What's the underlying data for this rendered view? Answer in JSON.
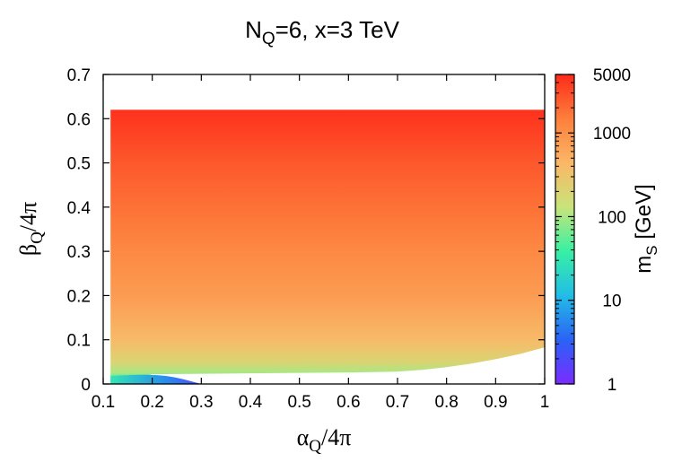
{
  "chart_data": {
    "type": "heatmap",
    "title": {
      "main": "N",
      "sub": "Q",
      "rest": "=6, x=3 TeV"
    },
    "xlabel": {
      "symbol": "α",
      "sub": "Q",
      "rest": "/4π"
    },
    "ylabel": {
      "symbol": "β",
      "sub": "Q",
      "rest": "/4π"
    },
    "colorbar_label": {
      "main": "m",
      "sub": "S",
      "rest": " [GeV]"
    },
    "xlim": [
      0.1,
      1
    ],
    "ylim": [
      0,
      0.7
    ],
    "x_ticks": [
      "0.1",
      "0.2",
      "0.3",
      "0.4",
      "0.5",
      "0.6",
      "0.7",
      "0.8",
      "0.9",
      "1"
    ],
    "y_ticks": [
      "0",
      "0.1",
      "0.2",
      "0.3",
      "0.4",
      "0.5",
      "0.6",
      "0.7"
    ],
    "colorbar": {
      "scale": "log",
      "range": [
        1,
        5000
      ],
      "ticks": [
        {
          "value": 1,
          "label": "1"
        },
        {
          "value": 10,
          "label": "10"
        },
        {
          "value": 100,
          "label": "100"
        },
        {
          "value": 1000,
          "label": "1000"
        },
        {
          "value": 5000,
          "label": "5000"
        }
      ],
      "colors": [
        "#7a2bff",
        "#2a63f5",
        "#22bde6",
        "#38f0a4",
        "#c8e47a",
        "#fbb767",
        "#fd7f3c",
        "#fe2a19"
      ]
    },
    "region": {
      "x_range": [
        0.115,
        1
      ],
      "y_max": 0.62,
      "lower_boundary": [
        {
          "x": 0.115,
          "y": 0.0
        },
        {
          "x": 0.2,
          "y": 0.022
        },
        {
          "x": 0.3,
          "y": 0.023
        },
        {
          "x": 0.4,
          "y": 0.024
        },
        {
          "x": 0.5,
          "y": 0.025
        },
        {
          "x": 0.6,
          "y": 0.026
        },
        {
          "x": 0.7,
          "y": 0.028
        },
        {
          "x": 0.75,
          "y": 0.032
        },
        {
          "x": 0.8,
          "y": 0.038
        },
        {
          "x": 0.85,
          "y": 0.046
        },
        {
          "x": 0.9,
          "y": 0.056
        },
        {
          "x": 0.95,
          "y": 0.068
        },
        {
          "x": 1.0,
          "y": 0.083
        }
      ],
      "value_vs_y": [
        {
          "y": 0.0,
          "m": 8
        },
        {
          "y": 0.01,
          "m": 30
        },
        {
          "y": 0.025,
          "m": 100
        },
        {
          "y": 0.05,
          "m": 200
        },
        {
          "y": 0.1,
          "m": 400
        },
        {
          "y": 0.2,
          "m": 800
        },
        {
          "y": 0.3,
          "m": 1200
        },
        {
          "y": 0.4,
          "m": 1800
        },
        {
          "y": 0.5,
          "m": 2600
        },
        {
          "y": 0.62,
          "m": 4500
        }
      ],
      "low_mass_island": {
        "x_range": [
          0.115,
          0.3
        ],
        "y_max": 0.022,
        "m_range": [
          2,
          30
        ]
      }
    }
  }
}
